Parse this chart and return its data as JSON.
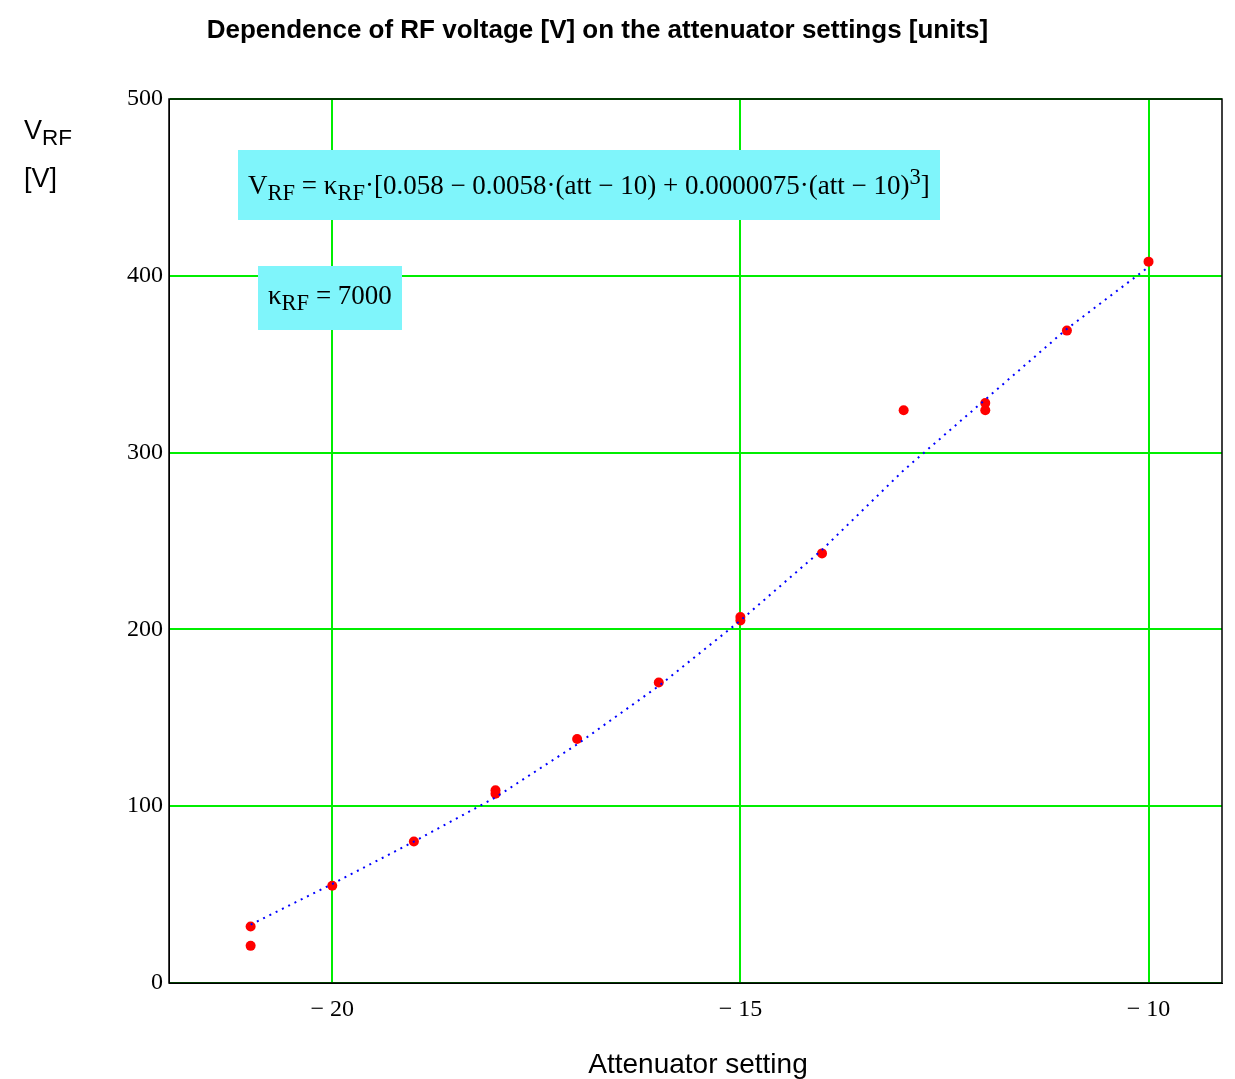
{
  "chart_data": {
    "type": "scatter",
    "title": "Dependence of RF voltage [V] on the attenuator settings [units]",
    "xlabel": "Attenuator setting",
    "ylabel": "V$_{RF}$ [V]",
    "annotations": [
      "V$_{RF}$ = κ$_{RF}$·[0.058 − 0.0058·(att − 10) + 0.0000075·(att − 10)$^{3}$]",
      "κ$_{RF}$ = 7000"
    ],
    "xlim": [
      -22,
      -9.1
    ],
    "xticks": [
      {
        "value": -20,
        "label": "− 20"
      },
      {
        "value": -15,
        "label": "− 15"
      },
      {
        "value": -10,
        "label": "− 10"
      }
    ],
    "ylim": [
      0,
      500
    ],
    "yticks": [
      0,
      100,
      200,
      300,
      400,
      500
    ],
    "grid": true,
    "marker": "circle",
    "series": [
      {
        "type": "line",
        "color": "#0000ff",
        "line_style": "dotted",
        "marker": "none",
        "x": [
          -21,
          -20,
          -19,
          -18,
          -17,
          -16,
          -15,
          -14,
          -13,
          -12,
          -11,
          -10
        ],
        "values": [
          33,
          56,
          80,
          105,
          135,
          168,
          205,
          245,
          290,
          330,
          370,
          405
        ]
      },
      {
        "type": "scatter",
        "color": "#ff0000",
        "x": [
          -21,
          -21,
          -20,
          -19,
          -18,
          -18,
          -17,
          -16,
          -15,
          -15,
          -14,
          -13,
          -12,
          -12,
          -11,
          -10
        ],
        "values": [
          32,
          21,
          55,
          80,
          109,
          107,
          138,
          170,
          207,
          205,
          243,
          324,
          328,
          324,
          369,
          408
        ]
      }
    ]
  }
}
